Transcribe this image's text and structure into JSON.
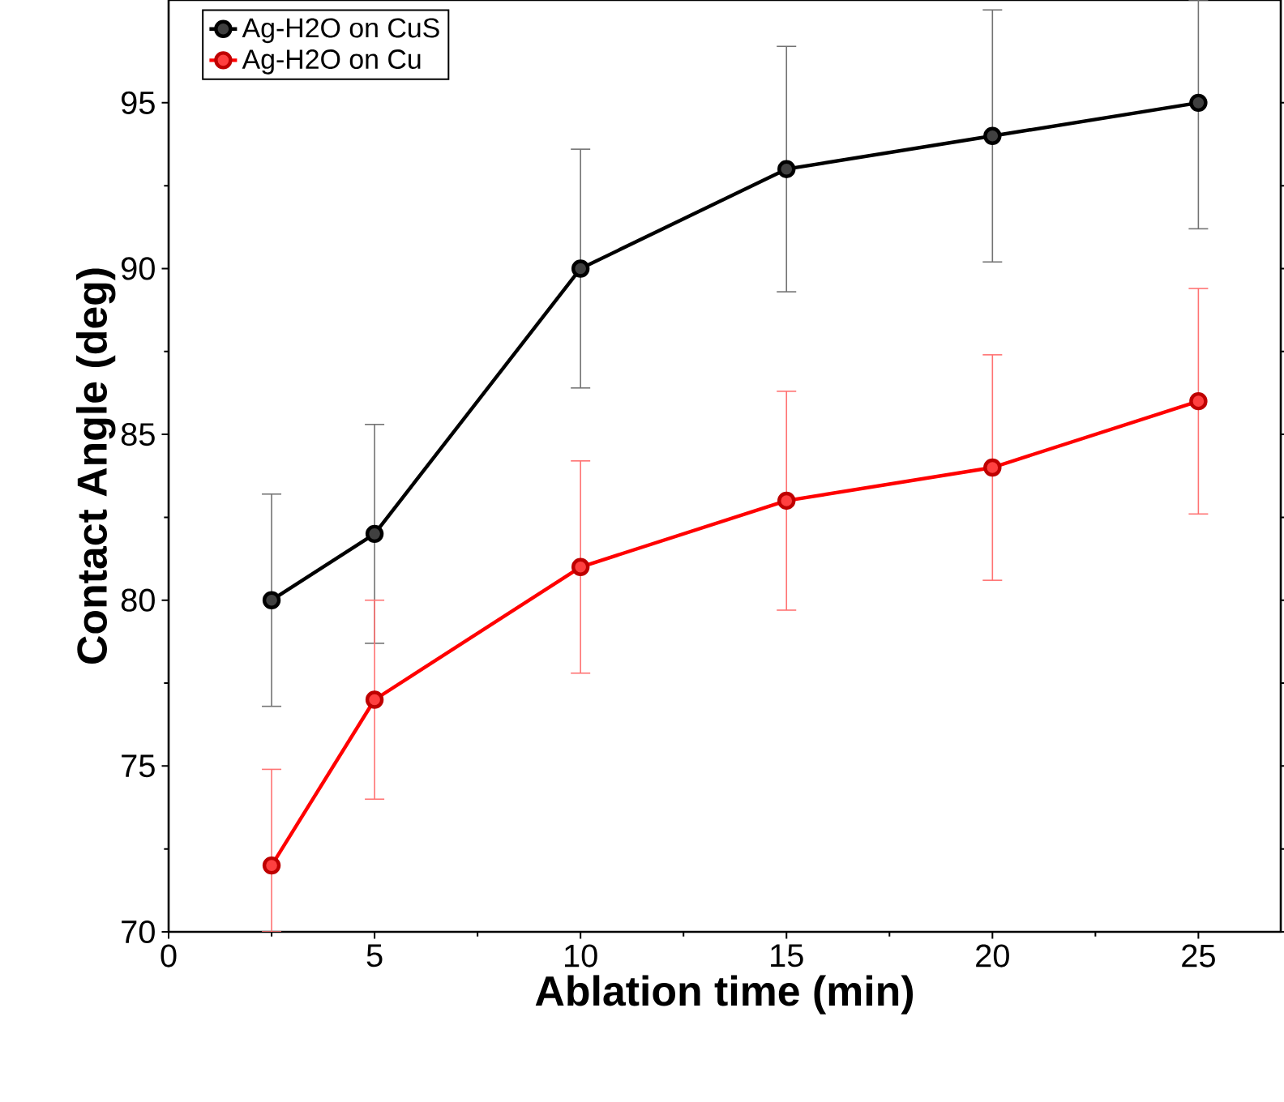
{
  "chart_data": {
    "type": "line",
    "xlabel": "Ablation time  (min)",
    "ylabel": "Contact Angle (deg)",
    "x": [
      2.5,
      5,
      10,
      15,
      20,
      25
    ],
    "series": [
      {
        "name": "Ag-H2O on  CuS",
        "color": "#000000",
        "values": [
          80,
          82,
          90,
          93,
          94,
          95
        ],
        "errors": [
          3.2,
          3.3,
          3.6,
          3.7,
          3.8,
          [
            91.2,
            98.1
          ]
        ]
      },
      {
        "name": "Ag-H2O on Cu",
        "color": "#ff0000",
        "values": [
          72,
          77,
          81,
          83,
          84,
          86
        ],
        "errors": [
          [
            70,
            74.9
          ],
          3.0,
          3.2,
          3.3,
          3.4,
          3.4
        ]
      }
    ],
    "xlim": [
      0,
      27
    ],
    "ylim": [
      70,
      98.1
    ],
    "xticks": [
      0,
      5,
      10,
      15,
      20,
      25
    ],
    "yticks": [
      70,
      75,
      80,
      85,
      90,
      95
    ],
    "marker": "circle",
    "line_style": "solid",
    "legend": "top left",
    "grid": false
  }
}
